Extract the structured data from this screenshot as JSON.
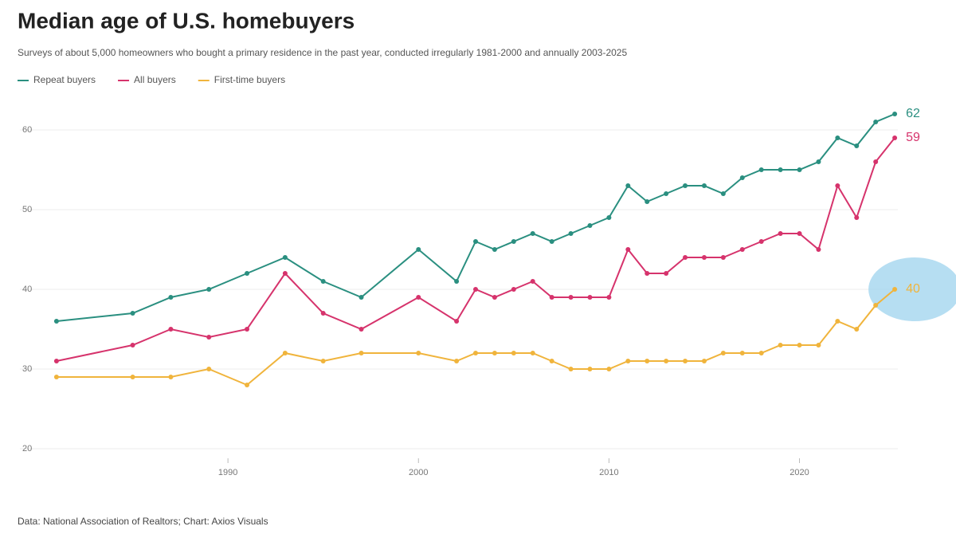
{
  "chart_data": {
    "type": "line",
    "title": "Median age of U.S. homebuyers",
    "subtitle": "Surveys of about 5,000 homeowners who bought a primary residence in the past year, conducted irregularly 1981-2000 and annually 2003-2025",
    "source": "Data: National Association of Realtors; Chart: Axios Visuals",
    "x": [
      1981,
      1985,
      1987,
      1989,
      1991,
      1993,
      1995,
      1997,
      2000,
      2002,
      2003,
      2004,
      2005,
      2006,
      2007,
      2008,
      2009,
      2010,
      2011,
      2012,
      2013,
      2014,
      2015,
      2016,
      2017,
      2018,
      2019,
      2020,
      2021,
      2022,
      2023,
      2024,
      2025
    ],
    "series": [
      {
        "name": "Repeat buyers",
        "color": "#2a8f80",
        "values": [
          36,
          37,
          39,
          40,
          42,
          44,
          41,
          39,
          45,
          41,
          46,
          45,
          46,
          47,
          46,
          47,
          48,
          49,
          53,
          51,
          52,
          53,
          53,
          52,
          54,
          55,
          55,
          55,
          56,
          59,
          58,
          61,
          62
        ]
      },
      {
        "name": "All buyers",
        "color": "#d6336c",
        "values": [
          31,
          33,
          35,
          34,
          35,
          42,
          37,
          35,
          39,
          36,
          40,
          39,
          40,
          41,
          39,
          39,
          39,
          39,
          45,
          42,
          42,
          44,
          44,
          44,
          45,
          46,
          47,
          47,
          45,
          53,
          49,
          56,
          59
        ]
      },
      {
        "name": "First-time buyers",
        "color": "#f0b43c",
        "values": [
          29,
          29,
          29,
          30,
          28,
          32,
          31,
          32,
          32,
          31,
          32,
          32,
          32,
          32,
          31,
          30,
          30,
          30,
          31,
          31,
          31,
          31,
          31,
          32,
          32,
          32,
          33,
          33,
          33,
          36,
          35,
          38,
          40
        ]
      }
    ],
    "xlim": [
      1980,
      2026
    ],
    "xticks": [
      1990,
      2000,
      2010,
      2020
    ],
    "ylim": [
      18,
      64
    ],
    "yticks": [
      20,
      30,
      40,
      50,
      60
    ],
    "grid": true
  }
}
